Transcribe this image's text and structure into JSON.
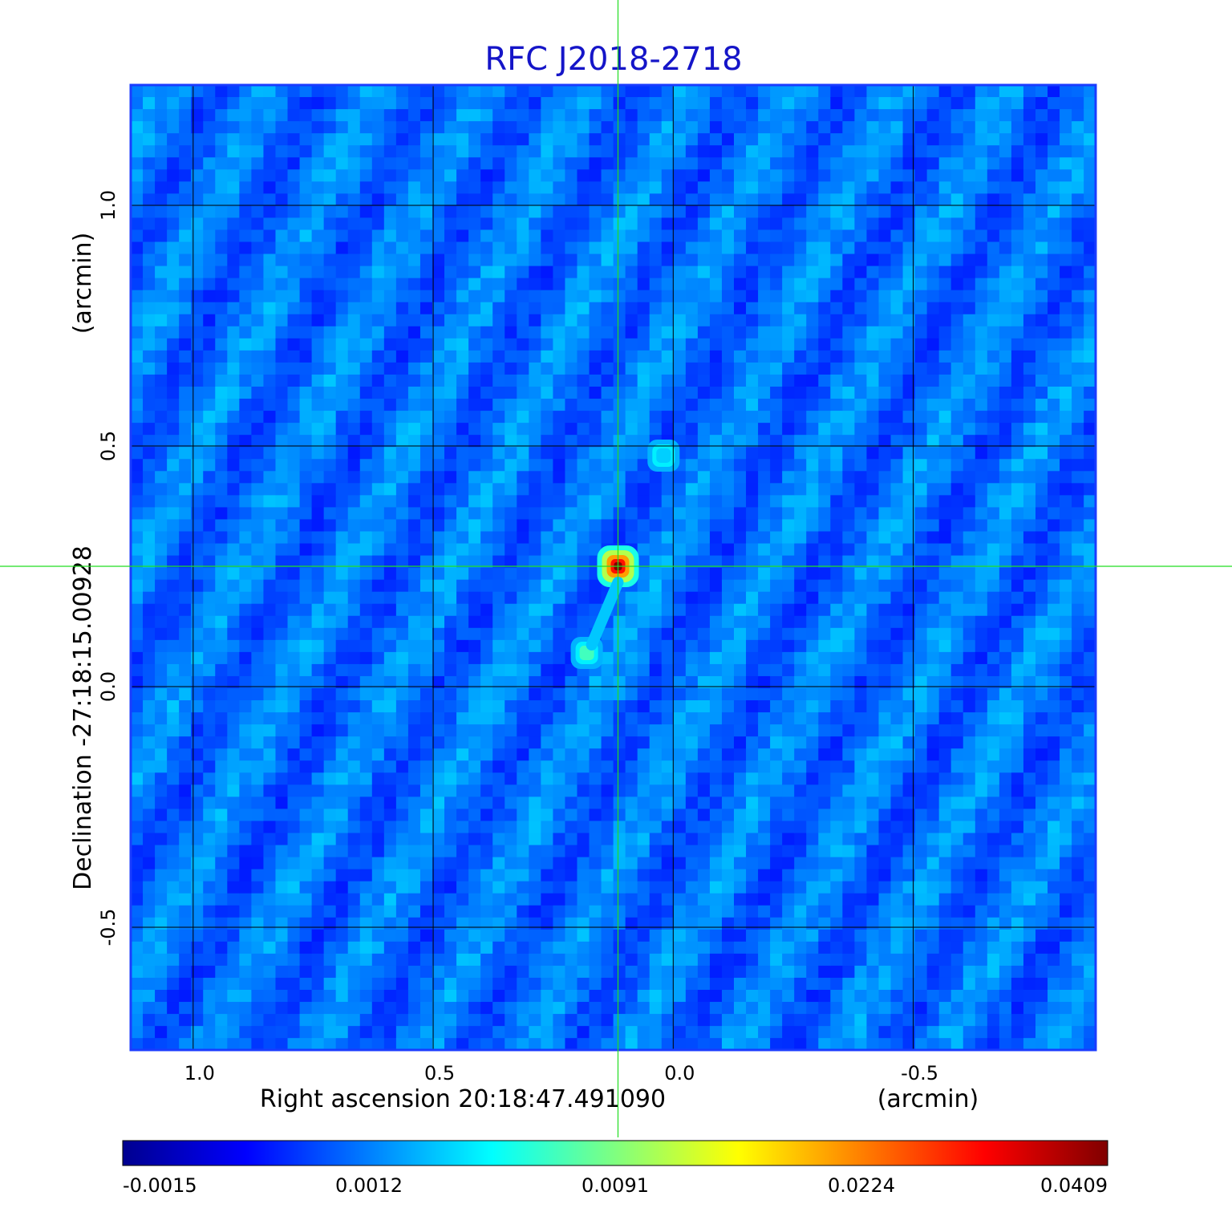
{
  "chart_data": {
    "type": "heatmap",
    "title": "RFC J2018-2718",
    "colormap": "jet",
    "colors": {
      "title": "#1515c8",
      "crosshair": "#22dd22",
      "grid": "#000000",
      "frame": "#1a3cff"
    },
    "x_axis": {
      "label": "Right ascension  20:18:47.491090",
      "unit_label": "(arcmin)",
      "range": [
        1.13,
        -0.88
      ],
      "ticks": [
        {
          "value": 1.0,
          "label": "1.0"
        },
        {
          "value": 0.5,
          "label": "0.5"
        },
        {
          "value": 0.0,
          "label": "0.0"
        },
        {
          "value": -0.5,
          "label": "-0.5"
        }
      ]
    },
    "y_axis": {
      "label": "Declination  -27:18:15.00928",
      "unit_label": "(arcmin)",
      "range": [
        -0.755,
        1.25
      ],
      "ticks": [
        {
          "value": 1.0,
          "label": "1.0"
        },
        {
          "value": 0.5,
          "label": "0.5"
        },
        {
          "value": 0.0,
          "label": "0.0"
        },
        {
          "value": -0.5,
          "label": "-0.5"
        }
      ]
    },
    "grid": true,
    "crosshair": {
      "x": 0.115,
      "y": 0.25
    },
    "colorbar": {
      "orientation": "horizontal",
      "range": [
        -0.0015,
        0.0409
      ],
      "ticks": [
        "-0.0015",
        "0.0012",
        "0.0091",
        "0.0224",
        "0.0409"
      ]
    },
    "sources": [
      {
        "x": 0.115,
        "y": 0.25,
        "peak": 0.0409
      },
      {
        "x": 0.18,
        "y": 0.07,
        "peak": 0.0065
      },
      {
        "x": 0.02,
        "y": 0.48,
        "peak": 0.0018
      }
    ]
  }
}
